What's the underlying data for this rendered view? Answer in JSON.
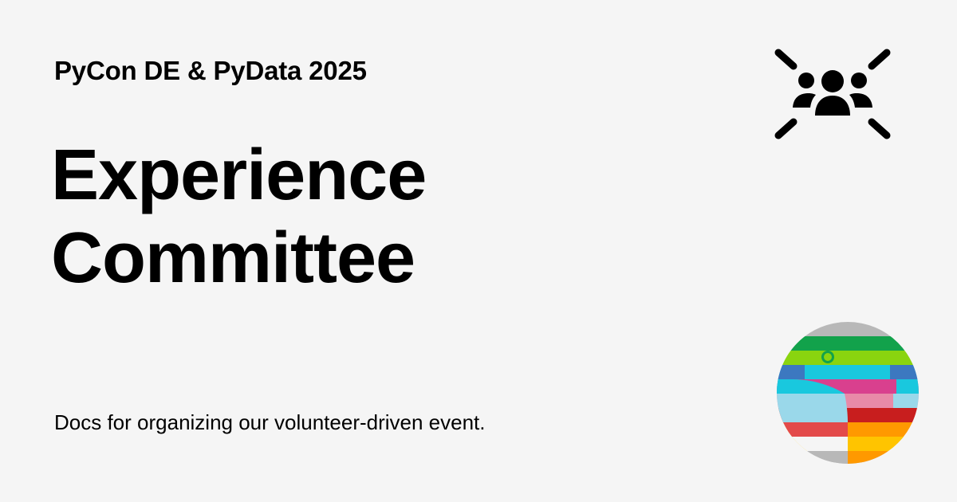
{
  "header": {
    "event_name": "PyCon DE & PyData 2025"
  },
  "main": {
    "title_line_1": "Experience",
    "title_line_2": "Committee",
    "description": "Docs for organizing our volunteer-driven event."
  },
  "icons": {
    "top_right": "group-focus-icon",
    "bottom_right": "pycon-de-pydata-logo"
  },
  "colors": {
    "background": "#f5f5f5",
    "text": "#000000",
    "logo_stripes": [
      "#b8b8b8",
      "#12a24b",
      "#8ad40f",
      "#3c78c0",
      "#19c8de",
      "#d9408e",
      "#9ad8ea",
      "#e88aa8",
      "#e34a4a",
      "#c81e1e",
      "#ffc400",
      "#ff9900"
    ]
  }
}
